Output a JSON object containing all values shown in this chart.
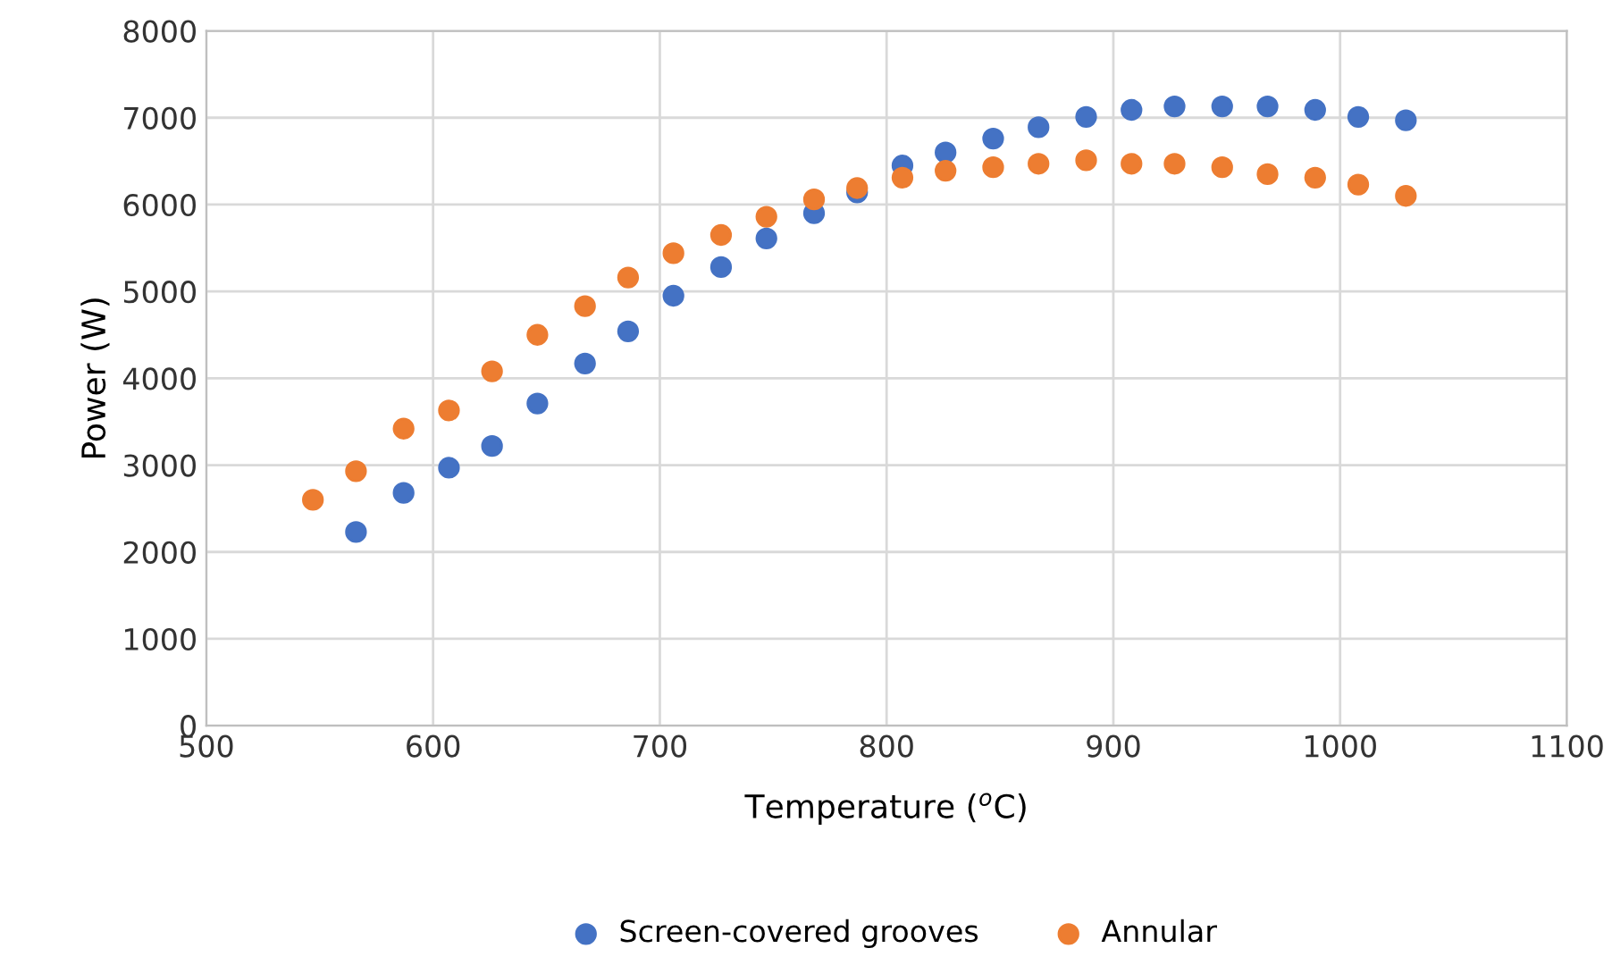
{
  "chart_data": {
    "type": "scatter",
    "xlabel": "Temperature ($^{o}$C)",
    "ylabel": "Power (W)",
    "xlim": [
      500,
      1100
    ],
    "xticks": [
      500,
      600,
      700,
      800,
      900,
      1000,
      1100
    ],
    "ylim": [
      0,
      8000
    ],
    "yticks": [
      0,
      1000,
      2000,
      3000,
      4000,
      5000,
      6000,
      7000,
      8000
    ],
    "grid": true,
    "legend": "bottom",
    "marker": "circle",
    "series": [
      {
        "name": "Screen-covered grooves",
        "color": "#4472c4",
        "x": [
          566,
          587,
          607,
          626,
          646,
          667,
          686,
          706,
          727,
          747,
          768,
          787,
          807,
          826,
          847,
          867,
          888,
          908,
          927,
          948,
          968,
          989,
          1008,
          1029
        ],
        "values": [
          2230,
          2680,
          2970,
          3220,
          3710,
          4170,
          4540,
          4950,
          5280,
          5610,
          5900,
          6140,
          6450,
          6600,
          6760,
          6890,
          7010,
          7090,
          7130,
          7130,
          7130,
          7090,
          7010,
          6970
        ]
      },
      {
        "name": "Annular",
        "color": "#ed7d31",
        "x": [
          547,
          566,
          587,
          607,
          626,
          646,
          667,
          686,
          706,
          727,
          747,
          768,
          787,
          807,
          826,
          847,
          867,
          888,
          908,
          927,
          948,
          968,
          989,
          1008,
          1029
        ],
        "values": [
          2600,
          2930,
          3420,
          3630,
          4080,
          4500,
          4830,
          5160,
          5440,
          5650,
          5860,
          6060,
          6190,
          6310,
          6390,
          6430,
          6470,
          6510,
          6470,
          6470,
          6430,
          6350,
          6310,
          6230,
          6100
        ]
      }
    ]
  }
}
